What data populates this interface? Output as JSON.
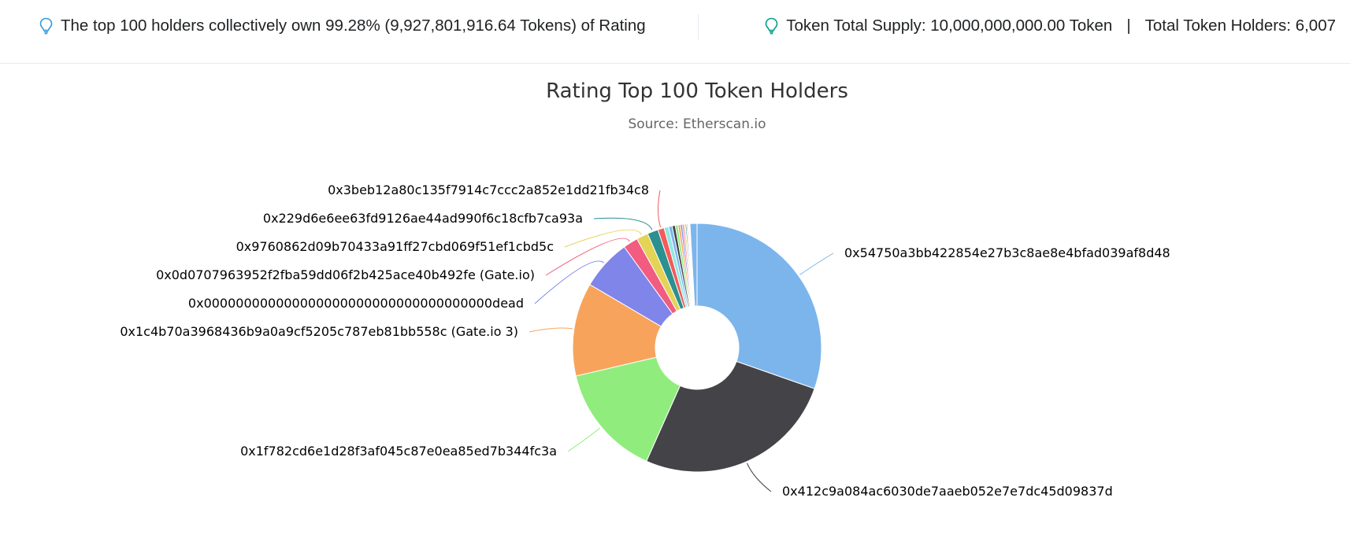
{
  "infobar": {
    "summary_text": "The top 100 holders collectively own 99.28% (9,927,801,916.64 Tokens) of Rating",
    "supply_text": "Token Total Supply: 10,000,000,000.00 Token",
    "separator": "|",
    "holders_text": "Total Token Holders: 6,007",
    "icon": "lightbulb-icon",
    "icon_color": "#00a186",
    "icon_color_left": "#3498db"
  },
  "chart_data": {
    "type": "pie",
    "variant": "donut",
    "title": "Rating Top 100 Token Holders",
    "subtitle": "Source: Etherscan.io",
    "slices": [
      {
        "name": "0x54750a3bb422854e27b3c8ae8e4bfad039af8d48",
        "value": 30.0,
        "color": "#7cb5ec",
        "label": true
      },
      {
        "name": "0x412c9a084ac6030de7aaeb052e7e7dc45d09837d",
        "value": 26.0,
        "color": "#434348",
        "label": true
      },
      {
        "name": "0x1f782cd6e1d28f3af045c87e0ea85ed7b344fc3a",
        "value": 14.5,
        "color": "#90ed7d",
        "label": true
      },
      {
        "name": "0x1c4b70a3968436b9a0a9cf5205c787eb81bb558c (Gate.io 3)",
        "value": 12.0,
        "color": "#f7a35c",
        "label": true
      },
      {
        "name": "0x000000000000000000000000000000000000dead",
        "value": 6.5,
        "color": "#8085e9",
        "label": true
      },
      {
        "name": "0x0d0707963952f2fba59dd06f2b425ace40b492fe (Gate.io)",
        "value": 1.9,
        "color": "#f15c80",
        "label": true
      },
      {
        "name": "0x9760862d09b70433a91ff27cbd069f51ef1cbd5c",
        "value": 1.5,
        "color": "#e4d354",
        "label": true
      },
      {
        "name": "0x229d6e6ee63fd9126ae44ad990f6c18cfb7ca93a",
        "value": 1.4,
        "color": "#2b908f",
        "label": true
      },
      {
        "name": "0x3beb12a80c135f7914c7ccc2a852e1dd21fb34c8",
        "value": 0.8,
        "color": "#f45b5b",
        "label": true
      },
      {
        "name": "",
        "value": 0.6,
        "color": "#91e8e1",
        "label": false
      },
      {
        "name": "",
        "value": 0.45,
        "color": "#7cb5ec",
        "label": false
      },
      {
        "name": "",
        "value": 0.4,
        "color": "#434348",
        "label": false
      },
      {
        "name": "",
        "value": 0.35,
        "color": "#90ed7d",
        "label": false
      },
      {
        "name": "",
        "value": 0.3,
        "color": "#f7a35c",
        "label": false
      },
      {
        "name": "",
        "value": 0.25,
        "color": "#8085e9",
        "label": false
      },
      {
        "name": "",
        "value": 0.2,
        "color": "#f15c80",
        "label": false
      },
      {
        "name": "",
        "value": 0.18,
        "color": "#e4d354",
        "label": false
      },
      {
        "name": "",
        "value": 0.16,
        "color": "#2b908f",
        "label": false
      },
      {
        "name": "",
        "value": 0.14,
        "color": "#f45b5b",
        "label": false
      },
      {
        "name": "",
        "value": 0.12,
        "color": "#91e8e1",
        "label": false
      },
      {
        "name": "",
        "value": 0.1,
        "color": "#7cb5ec",
        "label": false
      },
      {
        "name": "",
        "value": 0.08,
        "color": "#7cb5ec",
        "label": false
      },
      {
        "name": "",
        "value": 0.9,
        "color": "#7cb5ec",
        "label": false
      }
    ]
  }
}
